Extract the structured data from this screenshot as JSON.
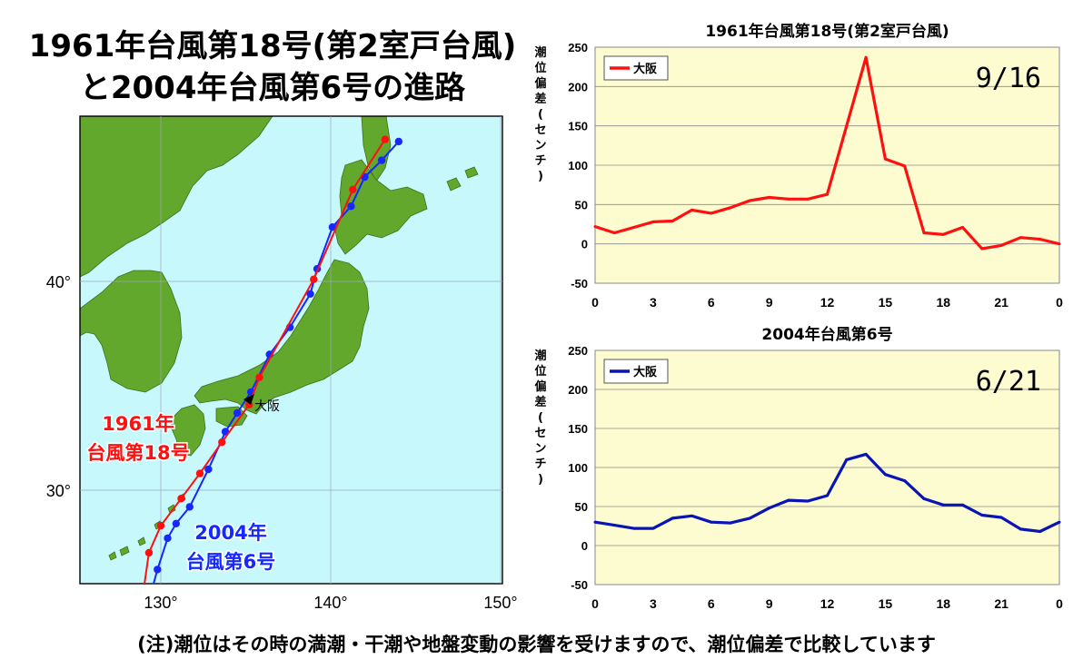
{
  "header": {
    "title_line1": "1961年台風第18号(第2室戸台風)",
    "title_line2": "と2004年台風第6号の進路"
  },
  "map": {
    "lat_labels": [
      "40°",
      "30°"
    ],
    "lon_labels": [
      "130°",
      "140°",
      "150°"
    ],
    "city_label": "大阪",
    "track_1961_label_line1": "1961年",
    "track_1961_label_line2": "台風第18号",
    "track_2004_label_line1": "2004年",
    "track_2004_label_line2": "台風第6号",
    "colors": {
      "sea": "#c6f8fc",
      "land": "#62a82c",
      "track_1961": "#ff1010",
      "track_2004": "#1428ff"
    },
    "track_1961": [
      [
        128.9,
        23.8
      ],
      [
        129.0,
        25.3
      ],
      [
        129.3,
        27.0
      ],
      [
        130.0,
        28.3
      ],
      [
        131.2,
        29.6
      ],
      [
        132.3,
        30.8
      ],
      [
        133.6,
        32.3
      ],
      [
        135.2,
        34.1
      ],
      [
        135.8,
        35.4
      ],
      [
        139.0,
        40.1
      ],
      [
        141.3,
        44.4
      ],
      [
        143.2,
        46.8
      ]
    ],
    "track_2004": [
      [
        129.3,
        24.7
      ],
      [
        129.8,
        26.2
      ],
      [
        130.4,
        27.7
      ],
      [
        130.9,
        28.4
      ],
      [
        131.7,
        29.2
      ],
      [
        132.8,
        31.0
      ],
      [
        133.8,
        32.8
      ],
      [
        134.5,
        33.7
      ],
      [
        135.3,
        34.7
      ],
      [
        136.4,
        36.5
      ],
      [
        137.6,
        37.8
      ],
      [
        138.8,
        39.4
      ],
      [
        139.2,
        40.6
      ],
      [
        140.1,
        42.6
      ],
      [
        141.2,
        43.6
      ],
      [
        142.0,
        45.0
      ],
      [
        143.0,
        45.8
      ],
      [
        144.0,
        46.7
      ]
    ]
  },
  "chart_data": [
    {
      "type": "line",
      "title": "1961年台風第18号(第2室戸台風)",
      "date_label": "9/16",
      "ylabel": "潮位偏差(センチ)",
      "ylim": [
        -50,
        250
      ],
      "yticks": [
        -50,
        0,
        50,
        100,
        150,
        200,
        250
      ],
      "xticks": [
        "0",
        "3",
        "6",
        "9",
        "12",
        "15",
        "18",
        "21",
        "0"
      ],
      "grid": true,
      "legend": "top-left",
      "x": [
        0,
        1,
        2,
        3,
        4,
        5,
        6,
        7,
        8,
        9,
        10,
        11,
        12,
        13,
        14,
        15,
        16,
        17,
        18,
        19,
        20,
        21,
        22,
        23,
        24
      ],
      "series": [
        {
          "name": "大阪",
          "color": "#ff1010",
          "values": [
            22,
            14,
            21,
            28,
            29,
            43,
            39,
            46,
            55,
            59,
            57,
            57,
            63,
            150,
            237,
            108,
            99,
            14,
            12,
            21,
            -6,
            -2,
            8,
            6,
            0
          ]
        }
      ]
    },
    {
      "type": "line",
      "title": "2004年台風第6号",
      "date_label": "6/21",
      "ylabel": "潮位偏差(センチ)",
      "ylim": [
        -50,
        250
      ],
      "yticks": [
        -50,
        0,
        50,
        100,
        150,
        200,
        250
      ],
      "xticks": [
        "0",
        "3",
        "6",
        "9",
        "12",
        "15",
        "18",
        "21",
        "0"
      ],
      "grid": true,
      "legend": "top-left",
      "x": [
        0,
        1,
        2,
        3,
        4,
        5,
        6,
        7,
        8,
        9,
        10,
        11,
        12,
        13,
        14,
        15,
        16,
        17,
        18,
        19,
        20,
        21,
        22,
        23,
        24
      ],
      "series": [
        {
          "name": "大阪",
          "color": "#0a14b4",
          "values": [
            30,
            26,
            22,
            22,
            35,
            38,
            30,
            29,
            35,
            48,
            58,
            57,
            64,
            110,
            117,
            91,
            83,
            60,
            52,
            52,
            39,
            36,
            21,
            18,
            30
          ]
        }
      ]
    }
  ],
  "footer": {
    "note": "(注)潮位はその時の満潮・干潮や地盤変動の影響を受けますので、潮位偏差で比較しています"
  }
}
